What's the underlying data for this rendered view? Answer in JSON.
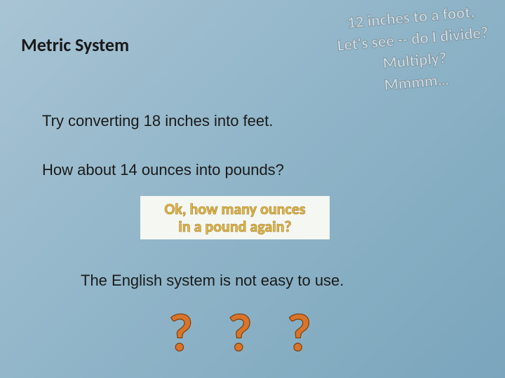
{
  "title": "Metric System",
  "line1": "Try converting 18 inches into feet.",
  "line2": "How about 14 ounces into pounds?",
  "callout": {
    "l1": "Ok, how many ounces",
    "l2": "in a pound again?",
    "bg_color": "#f5f7f2",
    "text_color": "#e1b84a",
    "stroke_color": "#a07820"
  },
  "line3": "The English system is not easy to use.",
  "questionmarks": "? ? ?",
  "qmark_color": "#d97428",
  "qmark_stroke": "#7a3f12",
  "thought": {
    "t1": "12 inches to a foot,",
    "t2": "Let's see -- do I divide?",
    "t3": "Multiply?",
    "t4": "Mmmm…",
    "text_color": "rgba(255,255,255,0.55)",
    "stroke_color": "rgba(80,80,80,0.5)",
    "rotation_deg": -5
  },
  "background_gradient": [
    "#a8c4d4",
    "#8fb4c8",
    "#7aa5bc"
  ]
}
